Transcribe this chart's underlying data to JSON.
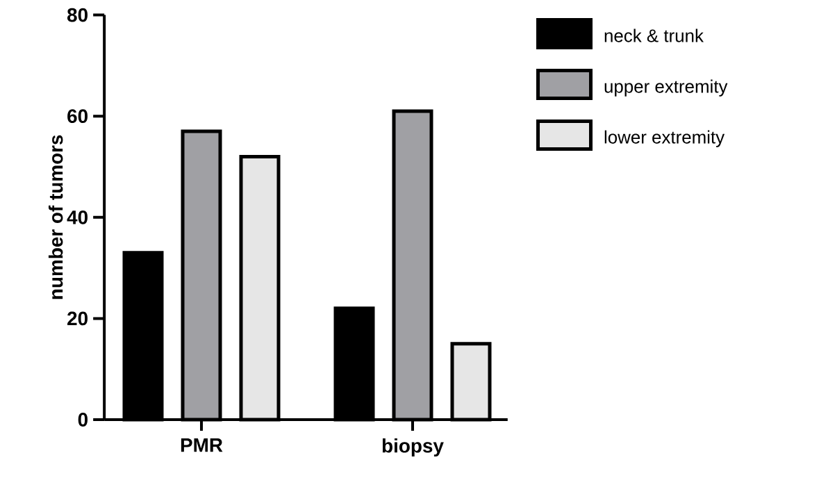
{
  "chart_data": {
    "type": "bar",
    "ylabel": "number of tumors",
    "categories": [
      "PMR",
      "biopsy"
    ],
    "series": [
      {
        "name": "neck & trunk",
        "color": "#000000",
        "values": [
          33,
          22
        ]
      },
      {
        "name": "upper extremity",
        "color": "#a0a0a4",
        "values": [
          57,
          61
        ]
      },
      {
        "name": "lower extremity",
        "color": "#e6e6e6",
        "values": [
          52,
          15
        ]
      }
    ],
    "ylim": [
      0,
      80
    ],
    "yticks": [
      0,
      20,
      40,
      60,
      80
    ],
    "legend": "right"
  }
}
